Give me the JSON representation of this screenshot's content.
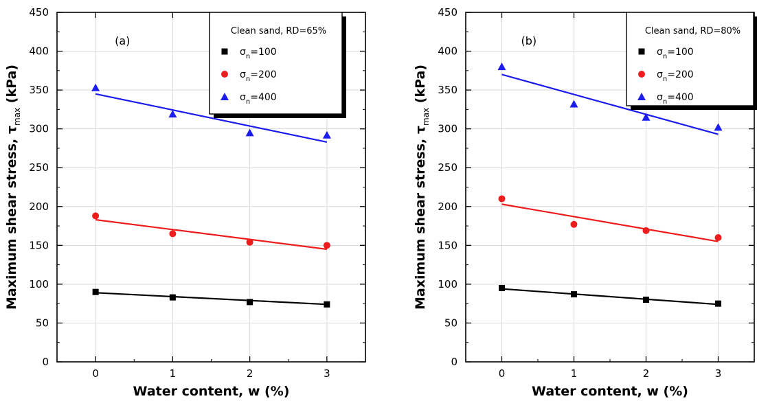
{
  "chart_data": [
    {
      "type": "scatter",
      "panel_label": "(a)",
      "xlabel": "Water content, w (%)",
      "ylabel_main": "Maximum shear stress, ",
      "ylabel_symbol": "τ",
      "ylabel_sub": "max",
      "ylabel_unit": " (kPa)",
      "xlim": [
        -0.5,
        3.5
      ],
      "ylim": [
        0,
        450
      ],
      "xticks": [
        0,
        1,
        2,
        3
      ],
      "yticks": [
        0,
        50,
        100,
        150,
        200,
        250,
        300,
        350,
        400,
        450
      ],
      "grid": true,
      "legend_title": "Clean sand, RD=65%",
      "legend_position": "top-right",
      "series": [
        {
          "name_sym": "σ",
          "name_sub": "n",
          "name_tail": "=100",
          "marker": "square",
          "color": "#000000",
          "x": [
            0,
            1,
            2,
            3
          ],
          "y": [
            90,
            83,
            77,
            74
          ],
          "fit": [
            89,
            74
          ]
        },
        {
          "name_sym": "σ",
          "name_sub": "n",
          "name_tail": "=200",
          "marker": "circle",
          "color": "#ee1c1c",
          "x": [
            0,
            1,
            2,
            3
          ],
          "y": [
            188,
            165,
            154,
            150
          ],
          "fit": [
            183,
            145
          ]
        },
        {
          "name_sym": "σ",
          "name_sub": "n",
          "name_tail": "=400",
          "marker": "triangle",
          "color": "#1c1cee",
          "x": [
            0,
            1,
            2,
            3
          ],
          "y": [
            353,
            319,
            295,
            292
          ],
          "fit": [
            345,
            283
          ]
        }
      ]
    },
    {
      "type": "scatter",
      "panel_label": "(b)",
      "xlabel": "Water content, w (%)",
      "ylabel_main": "Maximum shear stress, ",
      "ylabel_symbol": "τ",
      "ylabel_sub": "max",
      "ylabel_unit": " (kPa)",
      "xlim": [
        -0.5,
        3.5
      ],
      "ylim": [
        0,
        450
      ],
      "xticks": [
        0,
        1,
        2,
        3
      ],
      "yticks": [
        0,
        50,
        100,
        150,
        200,
        250,
        300,
        350,
        400,
        450
      ],
      "grid": true,
      "legend_title": "Clean sand, RD=80%",
      "legend_position": "top-right",
      "series": [
        {
          "name_sym": "σ",
          "name_sub": "n",
          "name_tail": "=100",
          "marker": "square",
          "color": "#000000",
          "x": [
            0,
            1,
            2,
            3
          ],
          "y": [
            95,
            87,
            80,
            75
          ],
          "fit": [
            94,
            74
          ]
        },
        {
          "name_sym": "σ",
          "name_sub": "n",
          "name_tail": "=200",
          "marker": "circle",
          "color": "#ee1c1c",
          "x": [
            0,
            1,
            2,
            3
          ],
          "y": [
            210,
            177,
            169,
            160
          ],
          "fit": [
            203,
            155
          ]
        },
        {
          "name_sym": "σ",
          "name_sub": "n",
          "name_tail": "=400",
          "marker": "triangle",
          "color": "#1c1cee",
          "x": [
            0,
            1,
            2,
            3
          ],
          "y": [
            380,
            332,
            315,
            302
          ],
          "fit": [
            370,
            293
          ]
        }
      ]
    }
  ]
}
